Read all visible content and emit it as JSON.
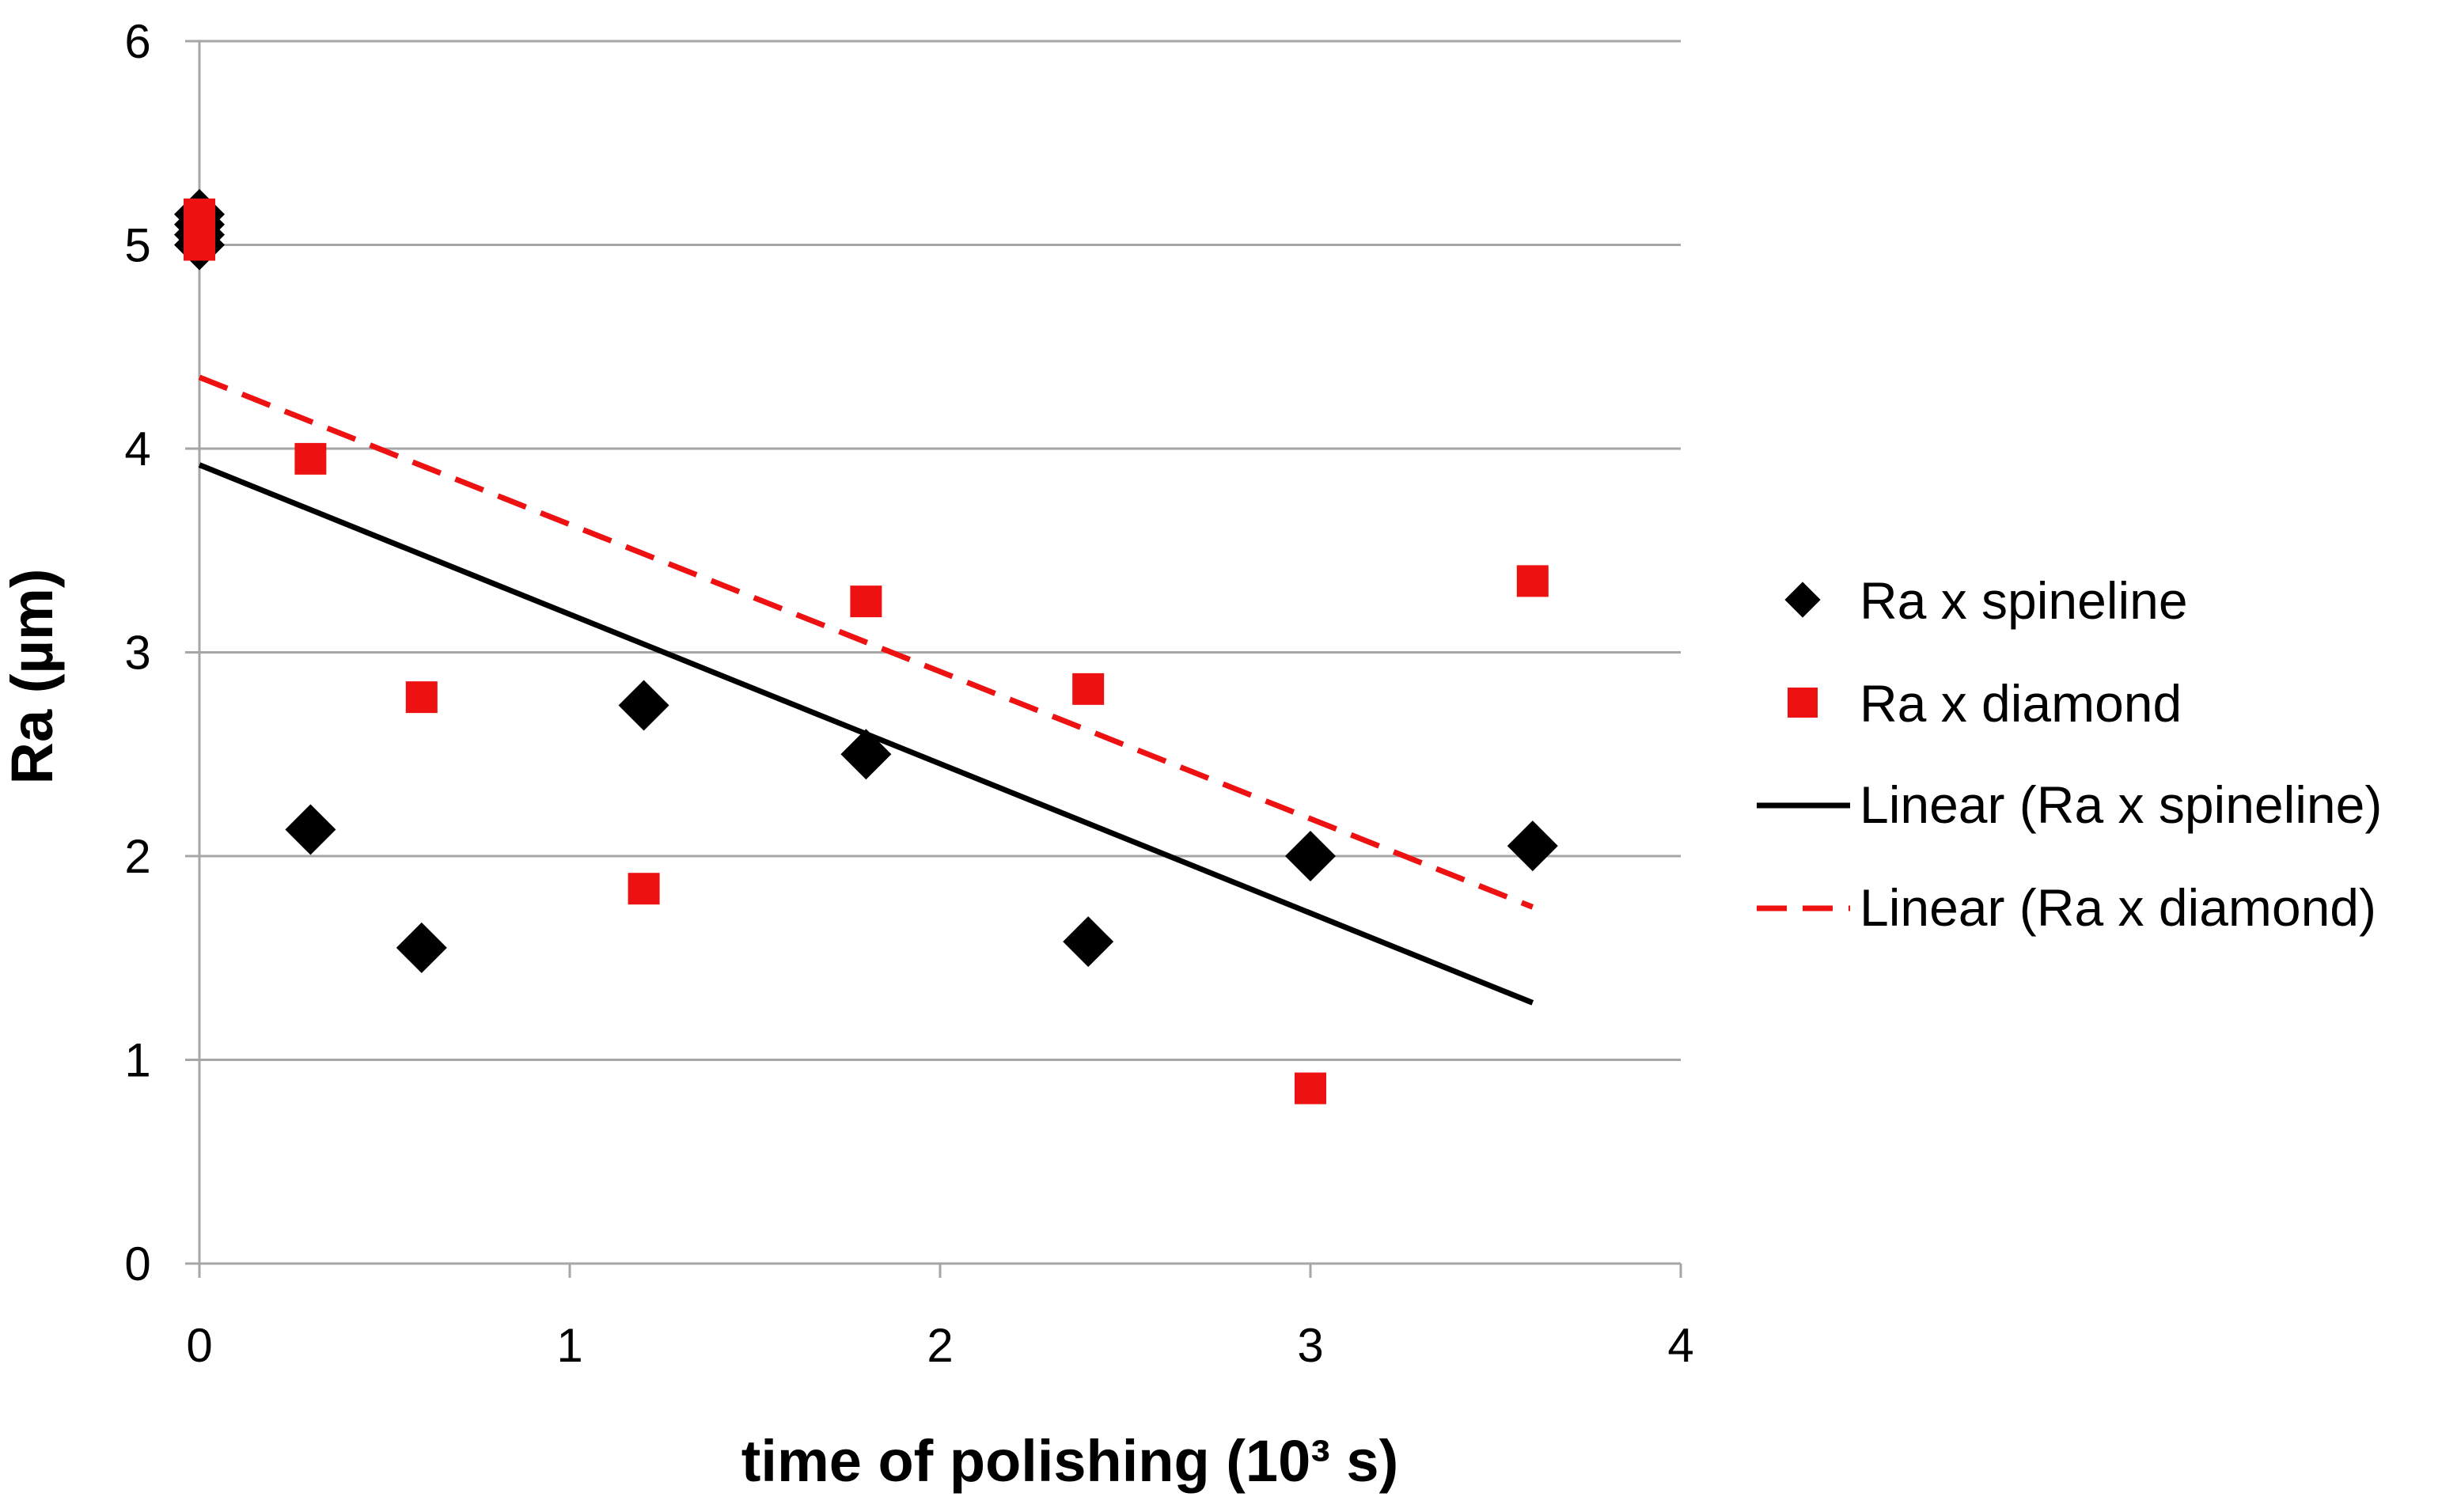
{
  "chart_data": {
    "type": "scatter",
    "title": "",
    "xlabel": "time of polishing (10³ s)",
    "ylabel": "Ra (µm)",
    "xlim": [
      0,
      4
    ],
    "ylim": [
      0,
      6
    ],
    "xticks": [
      0,
      1,
      2,
      3,
      4
    ],
    "yticks": [
      0,
      1,
      2,
      3,
      4,
      5,
      6
    ],
    "grid": "horizontal",
    "legend_position": "right",
    "colors": {
      "spineline": "#000000",
      "diamond": "#ee1111"
    },
    "series": [
      {
        "name": "Ra x spineline",
        "marker": "diamond",
        "color": "#000000",
        "points": [
          {
            "x": 0,
            "y": 5.0
          },
          {
            "x": 0,
            "y": 5.05
          },
          {
            "x": 0,
            "y": 5.1
          },
          {
            "x": 0,
            "y": 5.15
          },
          {
            "x": 0.3,
            "y": 2.13
          },
          {
            "x": 0.6,
            "y": 1.55
          },
          {
            "x": 1.2,
            "y": 2.74
          },
          {
            "x": 1.8,
            "y": 2.5
          },
          {
            "x": 2.4,
            "y": 1.58
          },
          {
            "x": 3.0,
            "y": 2.0
          },
          {
            "x": 3.6,
            "y": 2.05
          }
        ]
      },
      {
        "name": "Ra x diamond",
        "marker": "square",
        "color": "#ee1111",
        "points": [
          {
            "x": 0,
            "y": 5.0
          },
          {
            "x": 0,
            "y": 5.05
          },
          {
            "x": 0,
            "y": 5.1
          },
          {
            "x": 0,
            "y": 5.15
          },
          {
            "x": 0.3,
            "y": 3.95
          },
          {
            "x": 0.6,
            "y": 2.78
          },
          {
            "x": 1.2,
            "y": 1.84
          },
          {
            "x": 1.8,
            "y": 3.25
          },
          {
            "x": 2.4,
            "y": 2.82
          },
          {
            "x": 3.0,
            "y": 0.86
          },
          {
            "x": 3.6,
            "y": 3.35
          }
        ]
      }
    ],
    "trendlines": [
      {
        "name": "Linear (Ra x spineline)",
        "style": "solid",
        "color": "#000000",
        "x": [
          0,
          3.6
        ],
        "y": [
          3.92,
          1.28
        ]
      },
      {
        "name": "Linear (Ra x diamond)",
        "style": "dashed",
        "color": "#ee1111",
        "x": [
          0,
          3.6
        ],
        "y": [
          4.35,
          1.75
        ]
      }
    ]
  }
}
